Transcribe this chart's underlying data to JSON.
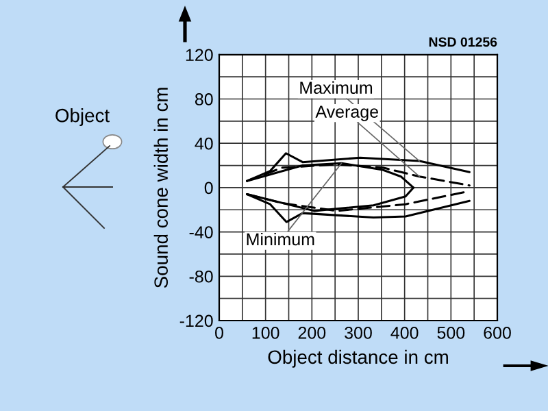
{
  "chart_data": {
    "type": "line",
    "xlabel": "Object distance in cm",
    "ylabel": "Sound cone width in cm",
    "annotations": [
      "NSD 01256",
      "Object"
    ],
    "xlim": [
      0,
      600
    ],
    "ylim": [
      -120,
      120
    ],
    "xticks": [
      0,
      {
        "value": 50,
        "label": null
      },
      100,
      {
        "value": 150,
        "label": null
      },
      200,
      {
        "value": 250,
        "label": null
      },
      300,
      {
        "value": 350,
        "label": null
      },
      400,
      {
        "value": 450,
        "label": null
      },
      500,
      {
        "value": 550,
        "label": null
      },
      600
    ],
    "yticks": [
      -120,
      {
        "value": -100,
        "label": null
      },
      -80,
      {
        "value": -60,
        "label": null
      },
      -40,
      {
        "value": -20,
        "label": null
      },
      0,
      {
        "value": 20,
        "label": null
      },
      40,
      {
        "value": 60,
        "label": null
      },
      80,
      {
        "value": 100,
        "label": null
      },
      120
    ],
    "grid": true,
    "legend": false,
    "marker": "none",
    "series": [
      {
        "name": "Maximum",
        "color": "#000000",
        "line_style": "solid",
        "x": [
          60,
          110,
          144,
          180,
          304,
          432,
          540
        ],
        "values": [
          6,
          15,
          31,
          23,
          27,
          24,
          14
        ]
      },
      {
        "color": "#000000",
        "line_style": "solid",
        "x": [
          60,
          110,
          145,
          180,
          333,
          402,
          540
        ],
        "values": [
          -6,
          -15,
          -31,
          -23,
          -27,
          -26,
          -12
        ]
      },
      {
        "name": "Average",
        "color": "#000000",
        "line_style": "dashed",
        "x": [
          60,
          136,
          254,
          353,
          432,
          540
        ],
        "values": [
          6,
          18,
          21,
          18,
          10,
          2
        ]
      },
      {
        "color": "#000000",
        "line_style": "dashed",
        "x": [
          60,
          136,
          254,
          402,
          530
        ],
        "values": [
          -6,
          -14,
          -21,
          -15,
          -4
        ]
      },
      {
        "name": "Minimum",
        "color": "#000000",
        "line_style": "solid",
        "x": [
          60,
          180,
          264,
          353,
          392,
          419
        ],
        "values": [
          6,
          20,
          22,
          16,
          10,
          0
        ]
      },
      {
        "color": "#000000",
        "line_style": "solid",
        "x": [
          60,
          205,
          333,
          402,
          419
        ],
        "values": [
          -6,
          -21,
          -16,
          -8,
          0
        ]
      }
    ]
  }
}
